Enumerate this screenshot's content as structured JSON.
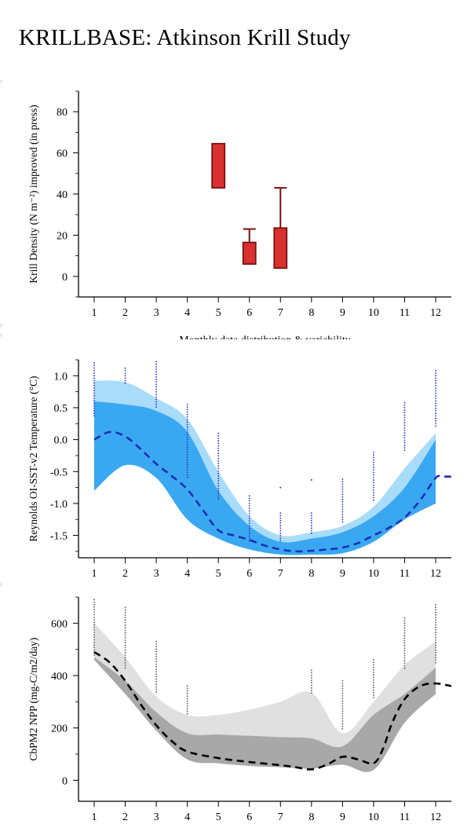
{
  "title": "KRILLBASE: Atkinson Krill Study",
  "chart_data": [
    {
      "type": "box",
      "ylabel": "Krill Density (N m⁻²) improved (in press)",
      "xlabel": "Monthly data distribution & variability",
      "x_ticks": [
        "1",
        "2",
        "3",
        "4",
        "5",
        "6",
        "7",
        "8",
        "9",
        "10",
        "11",
        "12"
      ],
      "y_ticks": [
        "0",
        "20",
        "40",
        "60",
        "80"
      ],
      "xlim": [
        0.5,
        12.5
      ],
      "ylim": [
        -10,
        90
      ],
      "box_color": "#d93030",
      "box_edge": "#7a1010",
      "boxes": [
        {
          "month": 5,
          "q1": 43,
          "q3": 64.5,
          "whisker_high": null
        },
        {
          "month": 6,
          "q1": 6,
          "q3": 16.5,
          "whisker_high": 23
        },
        {
          "month": 7,
          "q1": 4,
          "q3": 23.5,
          "whisker_high": 43
        }
      ]
    },
    {
      "type": "area",
      "ylabel": "Reynolds OI-SST-v2 Temperature (°C)",
      "x_ticks": [
        "1",
        "2",
        "3",
        "4",
        "5",
        "6",
        "7",
        "8",
        "9",
        "10",
        "11",
        "12"
      ],
      "y_ticks": [
        "-1.5",
        "-1.0",
        "-0.5",
        "0.0",
        "0.5",
        "1.0"
      ],
      "xlim": [
        0.5,
        12.5
      ],
      "ylim": [
        -1.85,
        1.25
      ],
      "colors": {
        "outer": "#a8dcf8",
        "inner": "#3aa8f0",
        "line": "#1a2fb8",
        "dots": "#2a2ad0"
      },
      "months": [
        1,
        2,
        3,
        4,
        5,
        6,
        7,
        8,
        9,
        10,
        11,
        12
      ],
      "outer_upper": [
        0.92,
        0.9,
        0.65,
        0.32,
        -0.5,
        -1.2,
        -1.5,
        -1.45,
        -1.35,
        -1.05,
        -0.45,
        0.1
      ],
      "inner_upper": [
        0.6,
        0.55,
        0.45,
        0.12,
        -0.8,
        -1.35,
        -1.6,
        -1.55,
        -1.45,
        -1.2,
        -0.75,
        0.0
      ],
      "lower": [
        -0.8,
        -0.4,
        -0.6,
        -1.25,
        -1.55,
        -1.72,
        -1.8,
        -1.8,
        -1.78,
        -1.6,
        -1.25,
        -1.0
      ],
      "mean_x": [
        1,
        1.5,
        2,
        2.5,
        3,
        3.5,
        4,
        4.5,
        5,
        5.5,
        6,
        6.5,
        7,
        7.5,
        8,
        8.5,
        9,
        9.5,
        10,
        10.5,
        11,
        11.5,
        12,
        12.2,
        12.5
      ],
      "mean_y": [
        0.0,
        0.12,
        0.05,
        -0.15,
        -0.38,
        -0.57,
        -0.78,
        -1.1,
        -1.42,
        -1.5,
        -1.57,
        -1.66,
        -1.72,
        -1.75,
        -1.74,
        -1.72,
        -1.69,
        -1.62,
        -1.5,
        -1.38,
        -1.22,
        -0.95,
        -0.6,
        -0.58,
        -0.58
      ],
      "dots": [
        {
          "month": 1,
          "from": 0.35,
          "to": 1.2
        },
        {
          "month": 2,
          "from": 0.88,
          "to": 1.12
        },
        {
          "month": 3,
          "from": 0.5,
          "to": 1.22
        },
        {
          "month": 4,
          "from": -0.6,
          "to": 0.55
        },
        {
          "month": 5,
          "from": -0.95,
          "to": 0.1
        },
        {
          "month": 6,
          "from": -1.6,
          "to": -0.88
        },
        {
          "month": 7,
          "from": -1.6,
          "to": -1.15
        },
        {
          "month": 8,
          "from": -1.5,
          "to": -1.15
        },
        {
          "month": 9,
          "from": -1.3,
          "to": -0.62
        },
        {
          "month": 10,
          "from": -0.95,
          "to": -0.2
        },
        {
          "month": 11,
          "from": -0.2,
          "to": 0.58
        },
        {
          "month": 12,
          "from": 0.2,
          "to": 1.08
        }
      ],
      "single_dots": [
        {
          "month": 7,
          "value": -0.75
        },
        {
          "month": 8,
          "value": -0.63
        }
      ]
    },
    {
      "type": "area",
      "ylabel": "CbPM2 NPP (mg-C/m2/day)",
      "x_ticks": [
        "1",
        "2",
        "3",
        "4",
        "5",
        "6",
        "7",
        "8",
        "9",
        "10",
        "11",
        "12"
      ],
      "y_ticks": [
        "0",
        "200",
        "400",
        "600"
      ],
      "xlim": [
        0.5,
        12.5
      ],
      "ylim": [
        -80,
        700
      ],
      "colors": {
        "outer": "#e0e0e0",
        "inner": "#a8a8a8",
        "line": "#000000",
        "dots": "#555555"
      },
      "months": [
        1,
        2,
        3,
        4,
        5,
        6,
        7,
        8,
        9,
        10,
        11,
        12
      ],
      "outer_upper": [
        600,
        470,
        320,
        250,
        250,
        270,
        300,
        335,
        180,
        300,
        440,
        530
      ],
      "inner_upper": [
        470,
        380,
        260,
        180,
        175,
        170,
        165,
        160,
        130,
        250,
        330,
        430
      ],
      "lower": [
        460,
        330,
        190,
        80,
        65,
        55,
        50,
        45,
        60,
        40,
        220,
        330
      ],
      "mean_x": [
        1,
        1.5,
        2,
        2.5,
        3,
        3.5,
        4,
        5,
        6,
        7,
        7.5,
        8,
        8.5,
        9,
        9.5,
        10,
        10.3,
        10.6,
        11,
        11.5,
        12,
        12.5
      ],
      "mean_y": [
        490,
        450,
        380,
        290,
        210,
        150,
        110,
        85,
        70,
        58,
        50,
        42,
        60,
        90,
        80,
        65,
        120,
        220,
        310,
        360,
        370,
        360
      ],
      "dots": [
        {
          "month": 1,
          "from": 470,
          "to": 690
        },
        {
          "month": 2,
          "from": 420,
          "to": 660
        },
        {
          "month": 3,
          "from": 330,
          "to": 530
        },
        {
          "month": 4,
          "from": 250,
          "to": 360
        },
        {
          "month": 8,
          "from": 330,
          "to": 420
        },
        {
          "month": 9,
          "from": 190,
          "to": 380
        },
        {
          "month": 10,
          "from": 310,
          "to": 460
        },
        {
          "month": 11,
          "from": 420,
          "to": 620
        },
        {
          "month": 12,
          "from": 440,
          "to": 670
        }
      ],
      "single_dots": []
    }
  ]
}
